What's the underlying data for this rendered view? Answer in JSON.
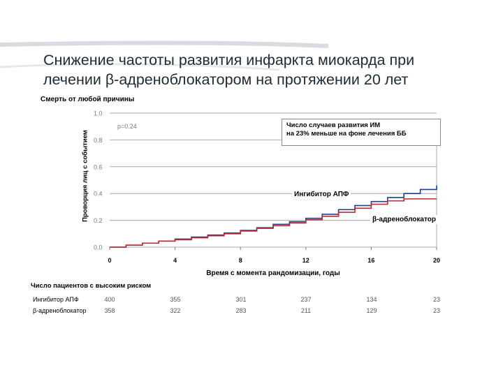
{
  "slide": {
    "title_line1": "Снижение частоты развития инфаркта миокарда при",
    "title_line2": "лечении β-адреноблокатором на протяжении 20 лет"
  },
  "chart_data": {
    "type": "line",
    "title": "Смерть от любой причины",
    "xlabel": "Время с момента рандомизации, годы",
    "ylabel": "Проворция лиц с событием",
    "xlim": [
      0,
      20
    ],
    "ylim": [
      0,
      1
    ],
    "x_ticks": [
      0,
      4,
      8,
      12,
      16,
      20
    ],
    "y_ticks": [
      "0.0",
      "0.2",
      "0.4",
      "0.6",
      "0.8",
      "1.0"
    ],
    "grid": true,
    "p_value_text": "p=0.24",
    "annotation_line1": "Число случаев развития ИМ",
    "annotation_line2": "на 23% меньше на фоне лечения ББ",
    "series": [
      {
        "name": "Ингибитор АПФ",
        "color": "#1f3f8f",
        "x": [
          0,
          1,
          2,
          3,
          4,
          5,
          6,
          7,
          8,
          9,
          10,
          11,
          12,
          13,
          14,
          15,
          16,
          17,
          18,
          19,
          20
        ],
        "y": [
          0.0,
          0.015,
          0.03,
          0.045,
          0.06,
          0.075,
          0.09,
          0.105,
          0.125,
          0.145,
          0.17,
          0.19,
          0.215,
          0.245,
          0.28,
          0.31,
          0.34,
          0.37,
          0.4,
          0.43,
          0.46
        ]
      },
      {
        "name": "β-адреноблокатор",
        "color": "#c0282d",
        "x": [
          0,
          1,
          2,
          3,
          4,
          5,
          6,
          7,
          8,
          9,
          10,
          11,
          12,
          13,
          14,
          15,
          16,
          17,
          18,
          19,
          20
        ],
        "y": [
          0.0,
          0.015,
          0.03,
          0.045,
          0.055,
          0.07,
          0.085,
          0.1,
          0.12,
          0.14,
          0.16,
          0.18,
          0.205,
          0.23,
          0.26,
          0.29,
          0.32,
          0.345,
          0.36,
          0.36,
          0.36
        ]
      }
    ]
  },
  "risk_table": {
    "title": "Число пациентов с высоким риском",
    "rows": [
      {
        "name": "Ингибитор АПФ",
        "values": [
          "400",
          "355",
          "301",
          "237",
          "134",
          "23"
        ]
      },
      {
        "name": "β-адреноблокатор",
        "values": [
          "358",
          "322",
          "283",
          "211",
          "129",
          "23"
        ]
      }
    ]
  }
}
